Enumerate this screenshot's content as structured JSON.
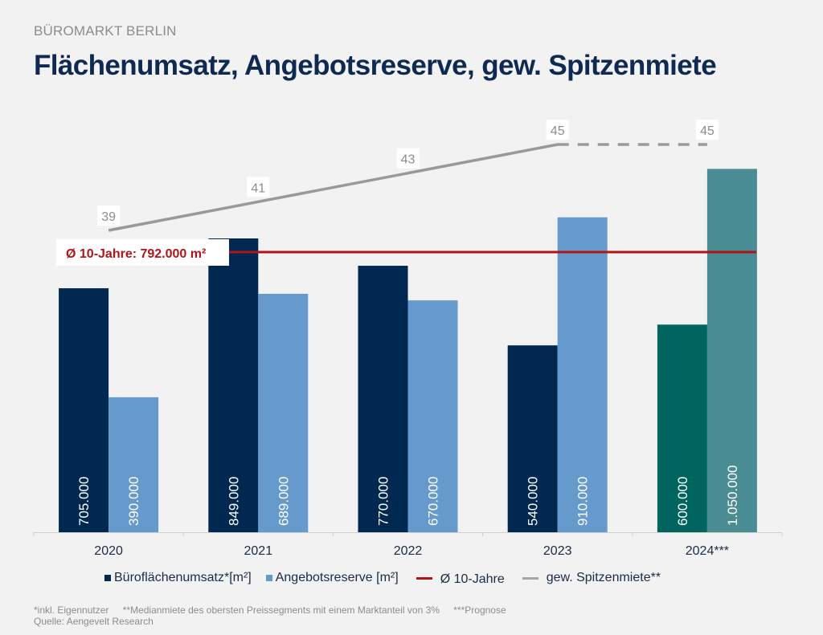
{
  "header": {
    "kicker": "BÜROMARKT BERLIN",
    "title": "Flächenumsatz, Angebotsreserve, gew. Spitzenmiete"
  },
  "chart_data": {
    "type": "bar",
    "title": "Flächenumsatz, Angebotsreserve, gew. Spitzenmiete",
    "categories": [
      "2020",
      "2021",
      "2022",
      "2023",
      "2024***"
    ],
    "series": [
      {
        "name": "Büroflächenumsatz*[m²]",
        "type": "bar",
        "values": [
          705000,
          849000,
          770000,
          540000,
          600000
        ],
        "labels": [
          "705.000",
          "849.000",
          "770.000",
          "540.000",
          "600.000"
        ],
        "color": "#002850",
        "forecast_color": "#00645f"
      },
      {
        "name": "Angebotsreserve [m²]",
        "type": "bar",
        "values": [
          390000,
          689000,
          670000,
          910000,
          1050000
        ],
        "labels": [
          "390.000",
          "689.000",
          "670.000",
          "910.000",
          "1.050.000"
        ],
        "color": "#6699cc",
        "forecast_color": "#4a8c94"
      },
      {
        "name": "Ø 10-Jahre",
        "type": "hline",
        "value": 792000,
        "label": "Ø 10-Jahre: 792.000 m²",
        "color": "#b01419"
      },
      {
        "name": "gew. Spitzenmiete**",
        "type": "line",
        "values": [
          39,
          41,
          43,
          45,
          45
        ],
        "labels": [
          "39",
          "41",
          "43",
          "45",
          "45"
        ],
        "dashed_from_index": 3,
        "color": "#999999"
      }
    ],
    "forecast_index": 4,
    "bar_ylim": [
      0,
      1100000
    ],
    "line_ylim": [
      20,
      50
    ],
    "xlabel": "",
    "ylabel": "",
    "grid": false,
    "legend_position": "bottom"
  },
  "legend": [
    {
      "label": "Büroflächenumsatz*[m²]",
      "color": "#002850",
      "kind": "square"
    },
    {
      "label": "Angebotsreserve [m²]",
      "color": "#6699cc",
      "kind": "square"
    },
    {
      "label": "Ø 10-Jahre",
      "color": "#b01419",
      "kind": "line"
    },
    {
      "label": "gew. Spitzenmiete**",
      "color": "#a6a6a6",
      "kind": "line"
    }
  ],
  "footnotes": {
    "note1": "*inkl. Eigennutzer",
    "note2": "**Medianmiete des obersten Preissegments mit einem Marktanteil von 3%",
    "note3": "***Prognose",
    "source": "Quelle: Aengevelt Research"
  }
}
